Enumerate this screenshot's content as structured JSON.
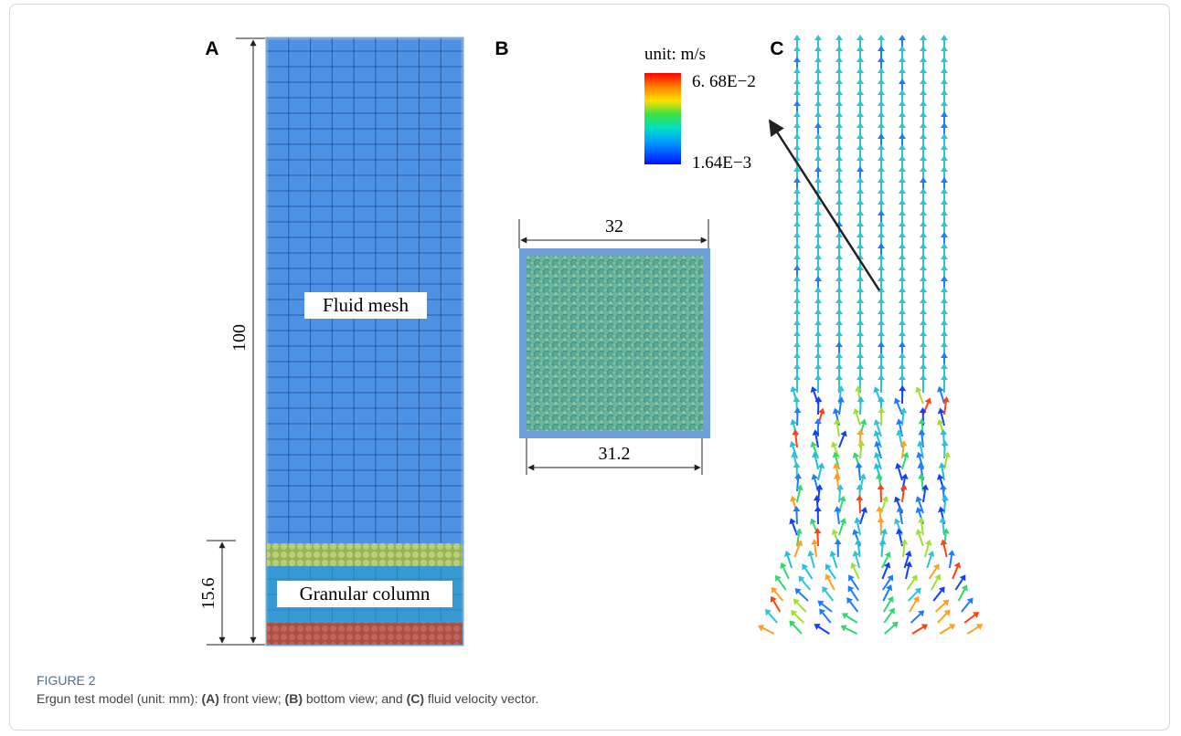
{
  "panels": {
    "a": {
      "letter": "A",
      "height_label": "100",
      "column_label": "15.6",
      "fluid_label": "Fluid mesh",
      "granular_label": "Granular column"
    },
    "b": {
      "letter": "B",
      "top_label": "32",
      "bottom_label": "31.2"
    },
    "c": {
      "letter": "C",
      "unit": "unit: m/s",
      "max_label": "6. 68E−2",
      "min_label": "1.64E−3"
    }
  },
  "caption": {
    "label": "FIGURE 2",
    "segments": [
      "Ergun test model (unit: mm): ",
      "(A)",
      " front view; ",
      "(B)",
      " bottom view; and ",
      "(C)",
      " fluid velocity vector."
    ]
  }
}
